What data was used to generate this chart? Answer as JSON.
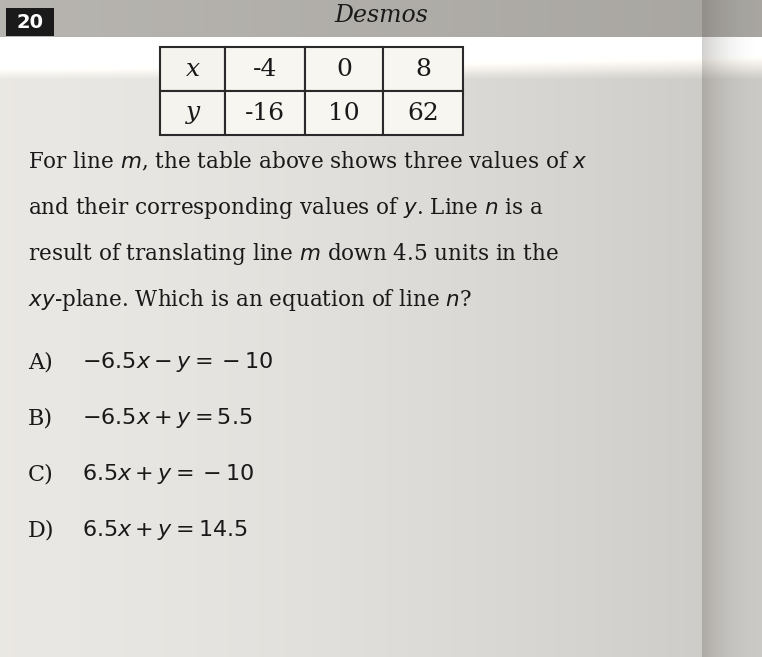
{
  "title": "Desmos",
  "question_number": "20",
  "table_x_values": [
    "-4",
    "0",
    "8"
  ],
  "table_y_values": [
    "-16",
    "10",
    "62"
  ],
  "body_lines": [
    "For line m, the table above shows three values of x",
    "and their corresponding values of y. Line n is a",
    "result of translating line m down 4.5 units in the",
    "xy-plane. Which is an equation of line n?"
  ],
  "choices": [
    {
      "label": "A)",
      "math": "−6.5x − y = −10"
    },
    {
      "label": "B)",
      "math": "−6.5x + y = 5.5"
    },
    {
      "label": "C)",
      "math": "6.5x + y = −10"
    },
    {
      "label": "D)",
      "math": "6.5x + y = 14.5"
    }
  ],
  "bg_light": "#e8e6e0",
  "bg_dark_right": "#c8c4bc",
  "header_color": "#c0bdb6",
  "question_num_bg": "#1a1a1a",
  "question_num_color": "#ffffff",
  "text_color": "#1a1818",
  "table_border": "#2a2a2a",
  "page_cream": "#eceae4",
  "shadow_color": "#b0aca4"
}
